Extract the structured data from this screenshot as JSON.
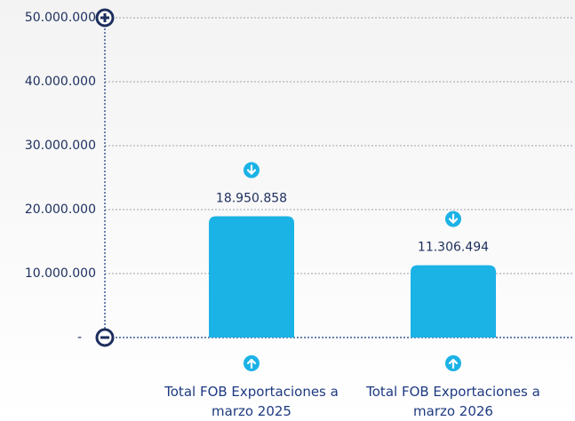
{
  "chart_data": {
    "type": "bar",
    "categories": [
      "Total FOB Exportaciones a marzo 2025",
      "Total FOB Exportaciones a marzo 2026"
    ],
    "values": [
      18950858,
      11306494
    ],
    "value_labels": [
      "18.950.858",
      "11.306.494"
    ],
    "color": "#1bb2e6",
    "ylim": [
      0,
      50000000
    ],
    "yticks": [
      {
        "value": 0,
        "label": "-"
      },
      {
        "value": 10000000,
        "label": "10.000.000"
      },
      {
        "value": 20000000,
        "label": "20.000.000"
      },
      {
        "value": 30000000,
        "label": "30.000.000"
      },
      {
        "value": 40000000,
        "label": "40.000.000"
      },
      {
        "value": 50000000,
        "label": "50.000.000"
      }
    ],
    "grid": true
  }
}
